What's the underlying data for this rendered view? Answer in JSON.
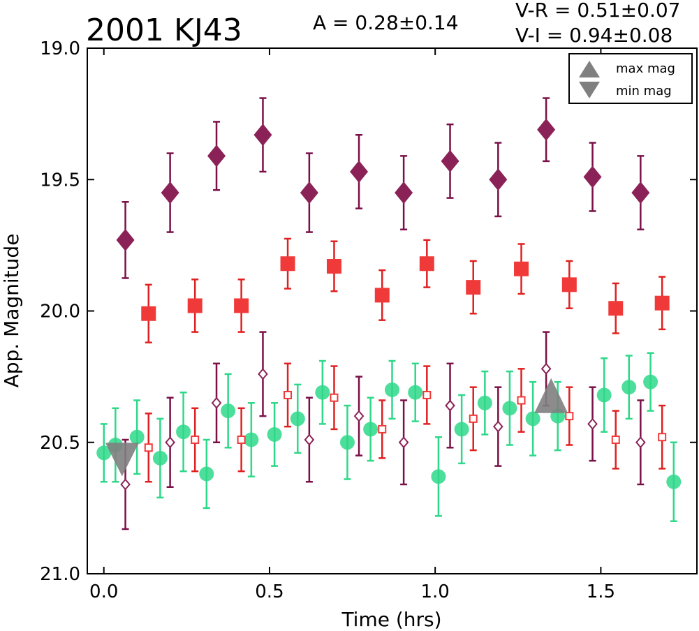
{
  "chart_data": {
    "type": "scatter",
    "title": "2001 KJ43",
    "amplitude_text": "A  = 0.28±0.14",
    "color_text_1": "V-R = 0.51±0.07",
    "color_text_2": "V-I  = 0.94±0.08",
    "xlabel": "Time (hrs)",
    "ylabel": "App. Magnitude",
    "xlim": [
      -0.05,
      1.79
    ],
    "ylim": [
      21.0,
      19.0
    ],
    "y_inverted": true,
    "grid": false,
    "legend_placement": "top-right",
    "x_ticks": [
      "0.0",
      "0.5",
      "1.0",
      "1.5"
    ],
    "y_ticks": [
      "19.0",
      "19.5",
      "20.0",
      "20.5",
      "21.0"
    ],
    "legend": [
      {
        "label": "max mag",
        "marker": "triangle-up",
        "color": "#808080"
      },
      {
        "label": "min mag",
        "marker": "triangle-down",
        "color": "#808080"
      }
    ],
    "series": [
      {
        "marker": "diamond-filled",
        "color": "#8B2257",
        "error_color": "#7A1048",
        "x": [
          0.065,
          0.2,
          0.34,
          0.48,
          0.62,
          0.77,
          0.905,
          1.045,
          1.19,
          1.335,
          1.475,
          1.62
        ],
        "y": [
          19.73,
          19.55,
          19.41,
          19.33,
          19.55,
          19.47,
          19.55,
          19.43,
          19.5,
          19.31,
          19.49,
          19.55
        ],
        "yerr": [
          0.145,
          0.15,
          0.13,
          0.14,
          0.15,
          0.14,
          0.14,
          0.14,
          0.14,
          0.12,
          0.13,
          0.14
        ]
      },
      {
        "marker": "square-filled",
        "color": "#F03A3A",
        "error_color": "#E02020",
        "x": [
          0.135,
          0.275,
          0.415,
          0.555,
          0.695,
          0.84,
          0.975,
          1.115,
          1.26,
          1.405,
          1.545,
          1.685
        ],
        "y": [
          20.01,
          19.98,
          19.98,
          19.82,
          19.83,
          19.94,
          19.82,
          19.91,
          19.84,
          19.9,
          19.99,
          19.97
        ],
        "yerr": [
          0.11,
          0.1,
          0.1,
          0.095,
          0.095,
          0.095,
          0.09,
          0.1,
          0.095,
          0.09,
          0.095,
          0.1
        ]
      },
      {
        "marker": "circle-filled",
        "color": "#2ED889",
        "error_color": "#2ED889",
        "x": [
          0.0,
          0.035,
          0.1,
          0.17,
          0.24,
          0.31,
          0.375,
          0.445,
          0.515,
          0.585,
          0.66,
          0.735,
          0.805,
          0.87,
          0.94,
          1.01,
          1.08,
          1.15,
          1.225,
          1.295,
          1.37,
          1.51,
          1.585,
          1.65,
          1.72
        ],
        "y": [
          20.54,
          20.51,
          20.48,
          20.56,
          20.46,
          20.62,
          20.38,
          20.49,
          20.47,
          20.41,
          20.31,
          20.5,
          20.45,
          20.3,
          20.31,
          20.63,
          20.45,
          20.35,
          20.37,
          20.41,
          20.4,
          20.32,
          20.29,
          20.27,
          20.65
        ],
        "yerr": [
          0.11,
          0.14,
          0.14,
          0.15,
          0.15,
          0.13,
          0.14,
          0.14,
          0.12,
          0.13,
          0.12,
          0.14,
          0.12,
          0.11,
          0.11,
          0.15,
          0.13,
          0.12,
          0.14,
          0.14,
          0.13,
          0.14,
          0.12,
          0.11,
          0.15
        ]
      },
      {
        "marker": "diamond-open",
        "color": "#8B2257",
        "error_color": "#7A1048",
        "x": [
          0.065,
          0.2,
          0.34,
          0.48,
          0.62,
          0.77,
          0.905,
          1.045,
          1.19,
          1.335,
          1.475,
          1.62
        ],
        "y": [
          20.66,
          20.5,
          20.35,
          20.24,
          20.49,
          20.4,
          20.5,
          20.36,
          20.44,
          20.22,
          20.43,
          20.5
        ],
        "yerr": [
          0.17,
          0.17,
          0.15,
          0.16,
          0.16,
          0.15,
          0.16,
          0.16,
          0.15,
          0.14,
          0.14,
          0.16
        ]
      },
      {
        "marker": "square-open",
        "color": "#F03A3A",
        "error_color": "#E02020",
        "x": [
          0.135,
          0.275,
          0.415,
          0.555,
          0.695,
          0.84,
          0.975,
          1.115,
          1.26,
          1.405,
          1.545,
          1.685
        ],
        "y": [
          20.52,
          20.49,
          20.49,
          20.32,
          20.33,
          20.45,
          20.32,
          20.41,
          20.34,
          20.4,
          20.49,
          20.48
        ],
        "yerr": [
          0.13,
          0.12,
          0.12,
          0.12,
          0.12,
          0.11,
          0.11,
          0.12,
          0.12,
          0.11,
          0.11,
          0.12
        ]
      }
    ],
    "annotations": [
      {
        "marker": "triangle-down",
        "label": "min mag",
        "x": 0.055,
        "y": 20.56,
        "color": "#808080"
      },
      {
        "marker": "triangle-up",
        "label": "max mag",
        "x": 1.35,
        "y": 20.33,
        "color": "#808080"
      }
    ]
  }
}
